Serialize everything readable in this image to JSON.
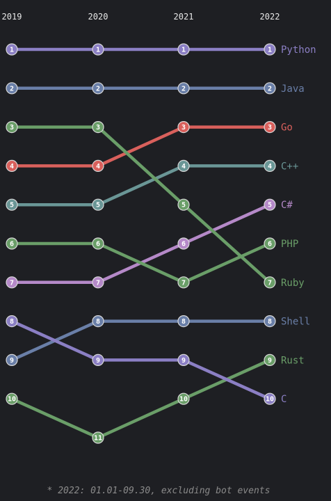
{
  "chart_data": {
    "type": "line",
    "subtype": "bump-ranking",
    "x": [
      "2019",
      "2020",
      "2021",
      "2022"
    ],
    "y_axis": "rank (1 = top), inverted",
    "series": [
      {
        "name": "Python",
        "color": "#8b7fc4",
        "ranks": [
          1,
          1,
          1,
          1
        ]
      },
      {
        "name": "Java",
        "color": "#6a7fa8",
        "ranks": [
          2,
          2,
          2,
          2
        ]
      },
      {
        "name": "Go",
        "color": "#d9605c",
        "ranks": [
          4,
          4,
          3,
          3
        ]
      },
      {
        "name": "C++",
        "color": "#6a9696",
        "ranks": [
          5,
          5,
          4,
          4
        ]
      },
      {
        "name": "C#",
        "color": "#b589c8",
        "ranks": [
          7,
          7,
          6,
          5
        ]
      },
      {
        "name": "PHP",
        "color": "#6a9e68",
        "ranks": [
          6,
          6,
          7,
          6
        ]
      },
      {
        "name": "Ruby",
        "color": "#6a9e68",
        "ranks": [
          3,
          3,
          5,
          7
        ]
      },
      {
        "name": "Shell",
        "color": "#6a7fa8",
        "ranks": [
          9,
          8,
          8,
          8
        ]
      },
      {
        "name": "Rust",
        "color": "#6a9e68",
        "ranks": [
          10,
          11,
          10,
          9
        ]
      },
      {
        "name": "C",
        "color": "#8b7fc4",
        "ranks": [
          8,
          9,
          9,
          10
        ]
      }
    ],
    "footnote": "* 2022: 01.01-09.30, excluding bot events"
  }
}
